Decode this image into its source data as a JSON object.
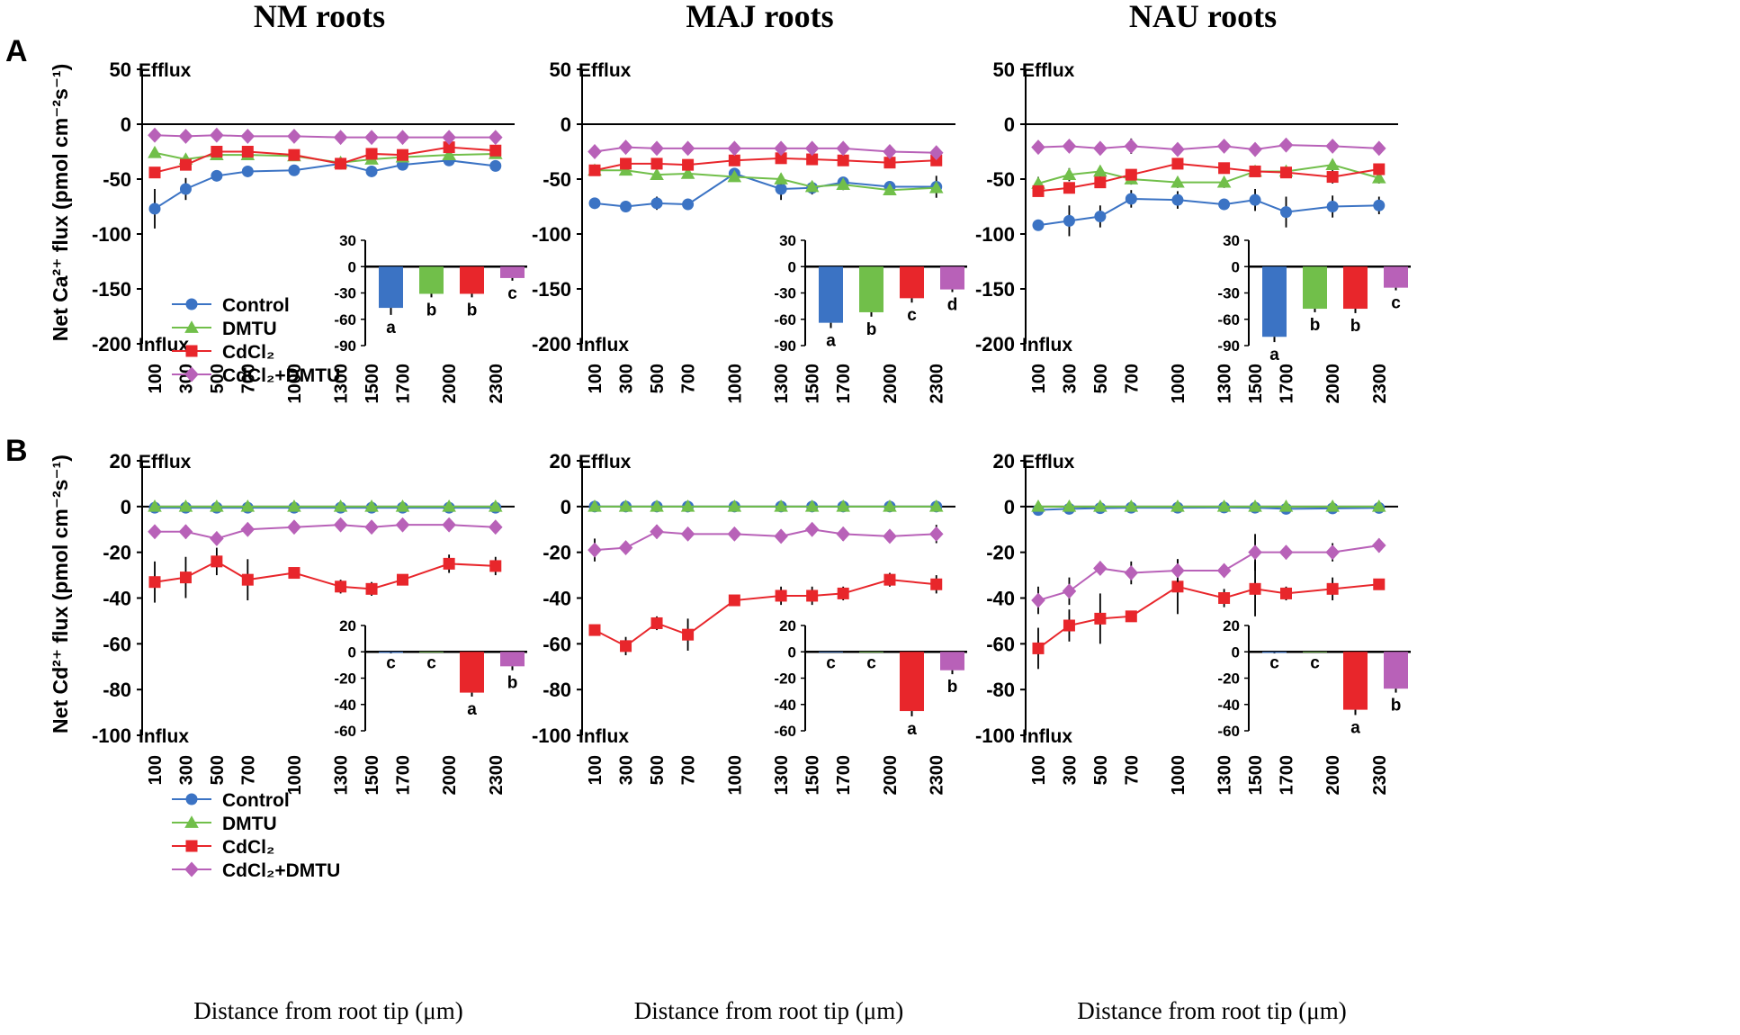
{
  "figure": {
    "panel_letters": [
      "A",
      "B"
    ],
    "column_titles": [
      "NM roots",
      "MAJ roots",
      "NAU roots"
    ],
    "row_ylabels": [
      "Net Ca²⁺ flux (pmol cm⁻²s⁻¹)",
      "Net Cd²⁺ flux (pmol cm⁻²s⁻¹)"
    ],
    "xlabel": "Distance from root tip (μm)",
    "efflux_label": "Efflux",
    "influx_label": "Influx",
    "legend": [
      "Control",
      "DMTU",
      "CdCl₂",
      "CdCl₂+DMTU"
    ],
    "colors": {
      "Control": "#3b73c4",
      "DMTU": "#71bf4a",
      "CdCl2": "#e8262b",
      "CdCl2_DMTU": "#b861b8"
    },
    "markers": {
      "Control": "circle",
      "DMTU": "triangle",
      "CdCl2": "square",
      "CdCl2_DMTU": "diamond"
    }
  },
  "chart_data": [
    {
      "type": "line",
      "panel": "A",
      "title": "NM roots",
      "ylabel": "Net Ca²⁺ flux (pmol cm⁻²s⁻¹)",
      "xlabel": "Distance from root tip (μm)",
      "categories": [
        "100",
        "300",
        "500",
        "700",
        "1000",
        "1300",
        "1500",
        "1700",
        "2000",
        "2300"
      ],
      "ylim": [
        -200,
        50
      ],
      "yticks": [
        50,
        0,
        -50,
        -100,
        -150,
        -200
      ],
      "series": [
        {
          "name": "Control",
          "values": [
            -77,
            -59,
            -47,
            -43,
            -42,
            -36,
            -43,
            -37,
            -33,
            -38
          ],
          "errors": [
            18,
            10,
            4,
            4,
            4,
            3,
            3,
            4,
            3,
            3
          ]
        },
        {
          "name": "DMTU",
          "values": [
            -26,
            -32,
            -28,
            -28,
            -29,
            -35,
            -32,
            -30,
            -28,
            -27
          ],
          "errors": [
            3,
            3,
            3,
            3,
            3,
            3,
            3,
            3,
            3,
            3
          ]
        },
        {
          "name": "CdCl₂",
          "values": [
            -44,
            -37,
            -25,
            -25,
            -28,
            -36,
            -27,
            -28,
            -21,
            -24
          ],
          "errors": [
            4,
            4,
            4,
            3,
            3,
            3,
            3,
            3,
            3,
            3
          ]
        },
        {
          "name": "CdCl₂+DMTU",
          "values": [
            -10,
            -11,
            -10,
            -11,
            -11,
            -12,
            -12,
            -12,
            -12,
            -12
          ],
          "errors": [
            2,
            2,
            2,
            2,
            2,
            2,
            2,
            2,
            2,
            2
          ]
        }
      ],
      "inset": {
        "type": "bar",
        "ylim": [
          -90,
          30
        ],
        "yticks": [
          30,
          0,
          -30,
          -60,
          -90
        ],
        "values": [
          -47,
          -31,
          -31,
          -13
        ],
        "errors": [
          8,
          4,
          4,
          3
        ],
        "letters": [
          "a",
          "b",
          "b",
          "c"
        ]
      }
    },
    {
      "type": "line",
      "panel": "A",
      "title": "MAJ roots",
      "ylabel": "Net Ca²⁺ flux (pmol cm⁻²s⁻¹)",
      "xlabel": "Distance from root tip (μm)",
      "categories": [
        "100",
        "300",
        "500",
        "700",
        "1000",
        "1300",
        "1500",
        "1700",
        "2000",
        "2300"
      ],
      "ylim": [
        -200,
        50
      ],
      "yticks": [
        50,
        0,
        -50,
        -100,
        -150,
        -200
      ],
      "series": [
        {
          "name": "Control",
          "values": [
            -72,
            -75,
            -72,
            -73,
            -45,
            -59,
            -58,
            -53,
            -57,
            -57
          ],
          "errors": [
            4,
            5,
            6,
            4,
            4,
            10,
            6,
            4,
            5,
            10
          ]
        },
        {
          "name": "DMTU",
          "values": [
            -42,
            -42,
            -46,
            -45,
            -48,
            -50,
            -57,
            -55,
            -60,
            -58
          ],
          "errors": [
            3,
            3,
            3,
            3,
            3,
            5,
            5,
            5,
            4,
            4
          ]
        },
        {
          "name": "CdCl₂",
          "values": [
            -42,
            -36,
            -36,
            -37,
            -33,
            -31,
            -32,
            -33,
            -35,
            -33
          ],
          "errors": [
            3,
            3,
            3,
            3,
            3,
            3,
            3,
            3,
            3,
            3
          ]
        },
        {
          "name": "CdCl₂+DMTU",
          "values": [
            -25,
            -21,
            -22,
            -22,
            -22,
            -22,
            -22,
            -22,
            -25,
            -26
          ],
          "errors": [
            2,
            2,
            2,
            2,
            2,
            2,
            2,
            2,
            2,
            2
          ]
        }
      ],
      "inset": {
        "type": "bar",
        "ylim": [
          -90,
          30
        ],
        "yticks": [
          30,
          0,
          -30,
          -60,
          -90
        ],
        "values": [
          -64,
          -52,
          -36,
          -26
        ],
        "errors": [
          6,
          5,
          5,
          3
        ],
        "letters": [
          "a",
          "b",
          "c",
          "d"
        ]
      }
    },
    {
      "type": "line",
      "panel": "A",
      "title": "NAU roots",
      "ylabel": "Net Ca²⁺ flux (pmol cm⁻²s⁻¹)",
      "xlabel": "Distance from root tip (μm)",
      "categories": [
        "100",
        "300",
        "500",
        "700",
        "1000",
        "1300",
        "1500",
        "1700",
        "2000",
        "2300"
      ],
      "ylim": [
        -200,
        50
      ],
      "yticks": [
        50,
        0,
        -50,
        -100,
        -150,
        -200
      ],
      "series": [
        {
          "name": "Control",
          "values": [
            -92,
            -88,
            -84,
            -68,
            -69,
            -73,
            -69,
            -80,
            -75,
            -74
          ],
          "errors": [
            4,
            14,
            10,
            8,
            8,
            5,
            10,
            14,
            10,
            8
          ]
        },
        {
          "name": "DMTU",
          "values": [
            -54,
            -46,
            -43,
            -50,
            -53,
            -53,
            -43,
            -43,
            -37,
            -49
          ],
          "errors": [
            6,
            6,
            5,
            5,
            5,
            5,
            4,
            4,
            5,
            5
          ]
        },
        {
          "name": "CdCl₂",
          "values": [
            -61,
            -58,
            -53,
            -46,
            -36,
            -40,
            -43,
            -44,
            -48,
            -41
          ],
          "errors": [
            5,
            5,
            5,
            5,
            4,
            4,
            4,
            4,
            6,
            5
          ]
        },
        {
          "name": "CdCl₂+DMTU",
          "values": [
            -21,
            -20,
            -22,
            -20,
            -23,
            -20,
            -23,
            -19,
            -20,
            -22
          ],
          "errors": [
            2,
            2,
            2,
            7,
            2,
            2,
            2,
            2,
            2,
            2
          ]
        }
      ],
      "inset": {
        "type": "bar",
        "ylim": [
          -90,
          30
        ],
        "yticks": [
          30,
          0,
          -30,
          -60,
          -90
        ],
        "values": [
          -80,
          -48,
          -48,
          -24
        ],
        "errors": [
          6,
          4,
          5,
          3
        ],
        "letters": [
          "a",
          "b",
          "b",
          "c"
        ]
      }
    },
    {
      "type": "line",
      "panel": "B",
      "title": "NM roots",
      "ylabel": "Net Cd²⁺ flux (pmol cm⁻²s⁻¹)",
      "xlabel": "Distance from root tip (μm)",
      "categories": [
        "100",
        "300",
        "500",
        "700",
        "1000",
        "1300",
        "1500",
        "1700",
        "2000",
        "2300"
      ],
      "ylim": [
        -100,
        20
      ],
      "yticks": [
        20,
        0,
        -20,
        -40,
        -60,
        -80,
        -100
      ],
      "series": [
        {
          "name": "Control",
          "values": [
            -0.5,
            -0.5,
            -0.5,
            -0.5,
            -0.5,
            -0.5,
            -0.5,
            -0.5,
            -0.5,
            -0.5
          ],
          "errors": [
            0.3,
            0.3,
            0.3,
            0.3,
            0.3,
            0.3,
            0.3,
            0.3,
            0.3,
            0.3
          ]
        },
        {
          "name": "DMTU",
          "values": [
            0,
            0,
            0,
            0,
            0,
            0,
            0,
            0,
            0,
            0
          ],
          "errors": [
            0.3,
            0.3,
            0.3,
            0.3,
            0.3,
            0.3,
            0.3,
            0.3,
            0.3,
            0.3
          ]
        },
        {
          "name": "CdCl₂",
          "values": [
            -33,
            -31,
            -24,
            -32,
            -29,
            -35,
            -36,
            -32,
            -25,
            -26
          ],
          "errors": [
            9,
            9,
            6,
            9,
            2,
            3,
            3,
            2,
            4,
            4
          ]
        },
        {
          "name": "CdCl₂+DMTU",
          "values": [
            -11,
            -11,
            -14,
            -10,
            -9,
            -8,
            -9,
            -8,
            -8,
            -9
          ],
          "errors": [
            2,
            3,
            3,
            2,
            2,
            2,
            2,
            2,
            2,
            2
          ]
        }
      ],
      "inset": {
        "type": "bar",
        "ylim": [
          -60,
          20
        ],
        "yticks": [
          20,
          0,
          -20,
          -40,
          -60
        ],
        "values": [
          -0.8,
          0,
          -31,
          -11
        ],
        "errors": [
          0.4,
          0,
          3,
          3
        ],
        "letters": [
          "c",
          "c",
          "a",
          "b"
        ]
      }
    },
    {
      "type": "line",
      "panel": "B",
      "title": "MAJ roots",
      "ylabel": "Net Cd²⁺ flux (pmol cm⁻²s⁻¹)",
      "xlabel": "Distance from root tip (μm)",
      "categories": [
        "100",
        "300",
        "500",
        "700",
        "1000",
        "1300",
        "1500",
        "1700",
        "2000",
        "2300"
      ],
      "ylim": [
        -100,
        20
      ],
      "yticks": [
        20,
        0,
        -20,
        -40,
        -60,
        -80,
        -100
      ],
      "series": [
        {
          "name": "Control",
          "values": [
            0,
            0,
            0,
            0,
            0,
            0,
            0,
            0,
            0,
            0
          ],
          "errors": [
            0.3,
            0.3,
            0.3,
            0.3,
            0.3,
            0.3,
            0.3,
            0.3,
            0.3,
            0.3
          ]
        },
        {
          "name": "DMTU",
          "values": [
            0,
            0,
            0,
            0,
            0,
            0,
            0,
            0,
            0,
            0
          ],
          "errors": [
            0.3,
            0.3,
            0.3,
            0.3,
            0.3,
            0.3,
            0.3,
            0.3,
            0.3,
            0.3
          ]
        },
        {
          "name": "CdCl₂",
          "values": [
            -54,
            -61,
            -51,
            -56,
            -41,
            -39,
            -39,
            -38,
            -32,
            -34
          ],
          "errors": [
            2,
            4,
            3,
            7,
            2,
            4,
            4,
            3,
            3,
            4
          ]
        },
        {
          "name": "CdCl₂+DMTU",
          "values": [
            -19,
            -18,
            -11,
            -12,
            -12,
            -13,
            -10,
            -12,
            -13,
            -12
          ],
          "errors": [
            5,
            2,
            3,
            2,
            2,
            2,
            2,
            3,
            2,
            4
          ]
        }
      ],
      "inset": {
        "type": "bar",
        "ylim": [
          -60,
          20
        ],
        "yticks": [
          20,
          0,
          -20,
          -40,
          -60
        ],
        "values": [
          0,
          0,
          -45,
          -14
        ],
        "errors": [
          0,
          0,
          4,
          3
        ],
        "letters": [
          "c",
          "c",
          "a",
          "b"
        ]
      }
    },
    {
      "type": "line",
      "panel": "B",
      "title": "NAU roots",
      "ylabel": "Net Cd²⁺ flux (pmol cm⁻²s⁻¹)",
      "xlabel": "Distance from root tip (μm)",
      "categories": [
        "100",
        "300",
        "500",
        "700",
        "1000",
        "1300",
        "1500",
        "1700",
        "2000",
        "2300"
      ],
      "ylim": [
        -100,
        20
      ],
      "yticks": [
        20,
        0,
        -20,
        -40,
        -60,
        -80,
        -100
      ],
      "series": [
        {
          "name": "Control",
          "values": [
            -1.5,
            -1,
            -0.7,
            -0.5,
            -0.5,
            -0.4,
            -0.5,
            -1,
            -0.8,
            -0.6
          ],
          "errors": [
            0.5,
            0.5,
            0.4,
            0.3,
            0.3,
            0.3,
            0.3,
            0.5,
            0.4,
            0.3
          ]
        },
        {
          "name": "DMTU",
          "values": [
            0,
            0,
            0,
            0,
            0,
            0,
            0,
            0,
            0,
            0
          ],
          "errors": [
            0.3,
            0.3,
            0.3,
            0.3,
            0.3,
            0.3,
            0.3,
            0.3,
            0.3,
            0.3
          ]
        },
        {
          "name": "CdCl₂",
          "values": [
            -62,
            -52,
            -49,
            -48,
            -35,
            -40,
            -36,
            -38,
            -36,
            -34
          ],
          "errors": [
            9,
            7,
            11,
            2,
            12,
            4,
            12,
            3,
            5,
            2
          ]
        },
        {
          "name": "CdCl₂+DMTU",
          "values": [
            -41,
            -37,
            -27,
            -29,
            -28,
            -28,
            -20,
            -20,
            -20,
            -17
          ],
          "errors": [
            6,
            6,
            3,
            5,
            5,
            2,
            8,
            3,
            4,
            3
          ]
        }
      ],
      "inset": {
        "type": "bar",
        "ylim": [
          -60,
          20
        ],
        "yticks": [
          20,
          0,
          -20,
          -40,
          -60
        ],
        "values": [
          -0.8,
          0,
          -44,
          -28
        ],
        "errors": [
          0.4,
          0,
          4,
          3
        ],
        "letters": [
          "c",
          "c",
          "a",
          "b"
        ]
      }
    }
  ]
}
